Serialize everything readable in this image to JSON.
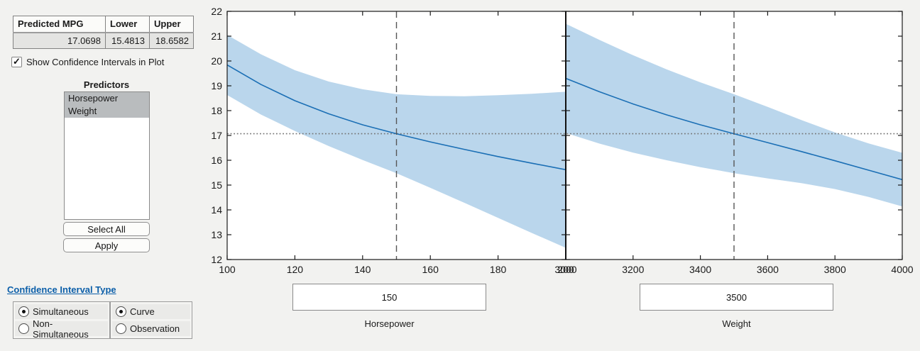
{
  "panel": {
    "table": {
      "headers": [
        "Predicted MPG",
        "Lower",
        "Upper"
      ],
      "values": [
        "17.0698",
        "15.4813",
        "18.6582"
      ]
    },
    "checkbox": {
      "label": "Show Confidence Intervals in Plot",
      "checked": true,
      "check_glyph": "✓"
    },
    "predictors": {
      "title": "Predictors",
      "items": [
        {
          "label": "Horsepower",
          "selected": true
        },
        {
          "label": "Weight",
          "selected": true
        }
      ],
      "select_all_label": "Select All",
      "apply_label": "Apply"
    },
    "ci_link": "Confidence Interval Type",
    "radio_groups": [
      {
        "options": [
          {
            "label": "Simultaneous",
            "selected": true
          },
          {
            "label": "Non-Simultaneous",
            "selected": false
          }
        ]
      },
      {
        "options": [
          {
            "label": "Curve",
            "selected": true
          },
          {
            "label": "Observation",
            "selected": false
          }
        ]
      }
    ]
  },
  "editors": [
    {
      "value": "150",
      "label": "Horsepower"
    },
    {
      "value": "3500",
      "label": "Weight"
    }
  ],
  "colors": {
    "band": "#bad6ec",
    "line": "#1b6fb5",
    "axis": "#1a1a1a",
    "dashed": "#565656",
    "dotted": "#757575",
    "link": "#0c5fa9"
  },
  "chart_data": [
    {
      "type": "line",
      "title": "",
      "xlabel": "Horsepower",
      "ylabel": "",
      "xlim": [
        100,
        200
      ],
      "ylim": [
        12,
        22
      ],
      "xticks": [
        100,
        120,
        140,
        160,
        180,
        200
      ],
      "yticks": [
        12,
        13,
        14,
        15,
        16,
        17,
        18,
        19,
        20,
        21,
        22
      ],
      "x": [
        100,
        110,
        120,
        130,
        140,
        150,
        160,
        170,
        180,
        190,
        200
      ],
      "fit": [
        19.84,
        19.05,
        18.4,
        17.87,
        17.43,
        17.07,
        16.74,
        16.44,
        16.15,
        15.88,
        15.62
      ],
      "upper": [
        21.05,
        20.27,
        19.63,
        19.17,
        18.86,
        18.66,
        18.59,
        18.58,
        18.62,
        18.68,
        18.76
      ],
      "lower": [
        18.63,
        17.84,
        17.18,
        16.57,
        16.01,
        15.48,
        14.89,
        14.29,
        13.68,
        13.07,
        12.47
      ],
      "current_x": 150,
      "predicted_y": 17.0698,
      "grid": false,
      "legend": "none"
    },
    {
      "type": "line",
      "title": "",
      "xlabel": "Weight",
      "ylabel": "",
      "xlim": [
        3000,
        4000
      ],
      "ylim": [
        12,
        22
      ],
      "xticks": [
        3000,
        3200,
        3400,
        3600,
        3800,
        4000
      ],
      "yticks": [
        12,
        13,
        14,
        15,
        16,
        17,
        18,
        19,
        20,
        21,
        22
      ],
      "x": [
        3000,
        3100,
        3200,
        3300,
        3400,
        3500,
        3600,
        3700,
        3800,
        3900,
        4000
      ],
      "fit": [
        19.3,
        18.76,
        18.27,
        17.83,
        17.43,
        17.07,
        16.71,
        16.35,
        15.98,
        15.6,
        15.22
      ],
      "upper": [
        21.5,
        20.85,
        20.23,
        19.66,
        19.14,
        18.66,
        18.15,
        17.62,
        17.12,
        16.68,
        16.3
      ],
      "lower": [
        17.1,
        16.67,
        16.31,
        16.0,
        15.72,
        15.48,
        15.27,
        15.08,
        14.84,
        14.52,
        14.14
      ],
      "current_x": 3500,
      "predicted_y": 17.0698,
      "grid": false,
      "legend": "none"
    }
  ]
}
